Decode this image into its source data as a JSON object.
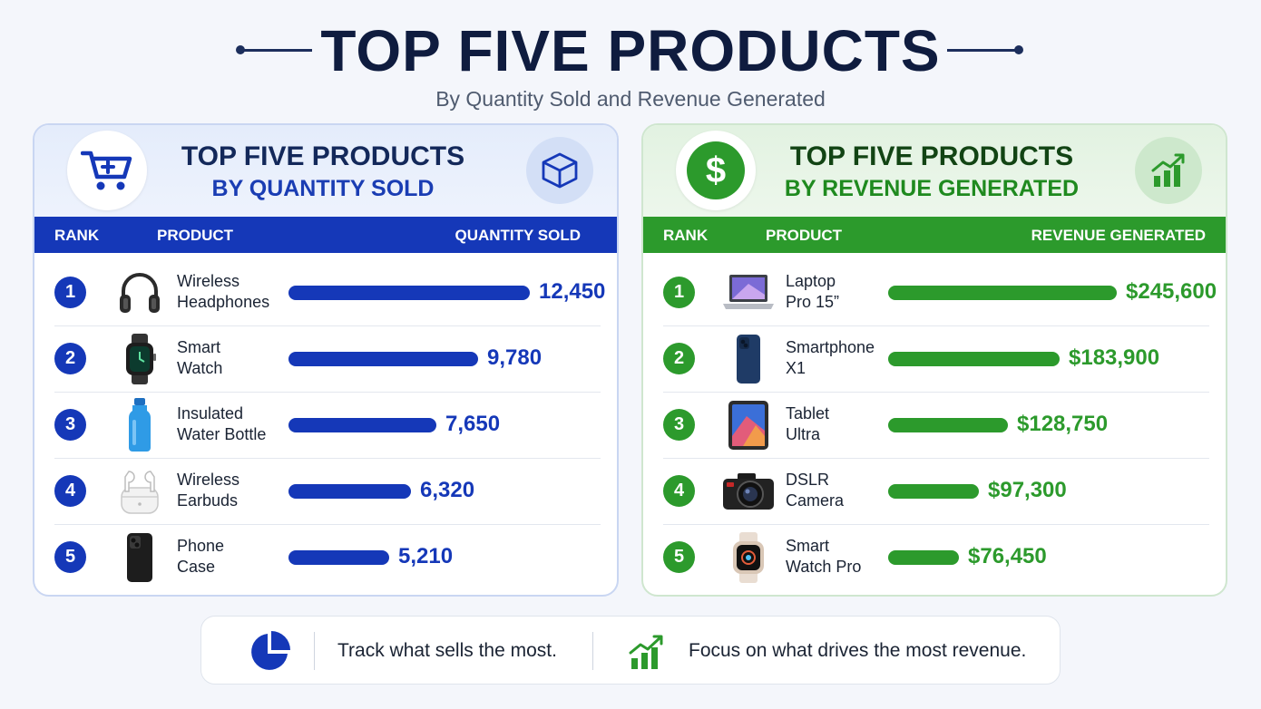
{
  "header": {
    "title": "TOP FIVE PRODUCTS",
    "subtitle": "By Quantity Sold and Revenue Generated"
  },
  "colors": {
    "blue": "#1538b8",
    "green": "#2c9a2c",
    "navy": "#0f1c3f"
  },
  "quantity_panel": {
    "title_line1": "TOP FIVE PRODUCTS",
    "title_line2": "BY QUANTITY SOLD",
    "icon": "shopping-cart-icon",
    "badge_icon": "box-icon",
    "col_rank": "RANK",
    "col_product": "PRODUCT",
    "col_value": "QUANTITY SOLD"
  },
  "revenue_panel": {
    "title_line1": "TOP FIVE PRODUCTS",
    "title_line2": "BY REVENUE GENERATED",
    "icon": "dollar-icon",
    "badge_icon": "growth-chart-icon",
    "col_rank": "RANK",
    "col_product": "PRODUCT",
    "col_value": "REVENUE GENERATED"
  },
  "chart_data": [
    {
      "type": "bar",
      "title": "TOP FIVE PRODUCTS BY QUANTITY SOLD",
      "orientation": "horizontal",
      "ranks": [
        "1",
        "2",
        "3",
        "4",
        "5"
      ],
      "categories": [
        [
          "Wireless",
          "Headphones"
        ],
        [
          "Smart",
          "Watch"
        ],
        [
          "Insulated",
          "Water Bottle"
        ],
        [
          "Wireless",
          "Earbuds"
        ],
        [
          "Phone",
          "Case"
        ]
      ],
      "icons": [
        "headphones-icon",
        "smartwatch-icon",
        "water-bottle-icon",
        "earbuds-icon",
        "phone-case-icon"
      ],
      "values": [
        12450,
        9780,
        7650,
        6320,
        5210
      ],
      "labels": [
        "12,450",
        "9,780",
        "7,650",
        "6,320",
        "5,210"
      ]
    },
    {
      "type": "bar",
      "title": "TOP FIVE PRODUCTS BY REVENUE GENERATED",
      "orientation": "horizontal",
      "ranks": [
        "1",
        "2",
        "3",
        "4",
        "5"
      ],
      "categories": [
        [
          "Laptop",
          "Pro 15”"
        ],
        [
          "Smartphone",
          "X1"
        ],
        [
          "Tablet",
          "Ultra"
        ],
        [
          "DSLR",
          "Camera"
        ],
        [
          "Smart",
          "Watch Pro"
        ]
      ],
      "icons": [
        "laptop-icon",
        "smartphone-icon",
        "tablet-icon",
        "camera-icon",
        "smartwatch-pro-icon"
      ],
      "values": [
        245600,
        183900,
        128750,
        97300,
        76450
      ],
      "labels": [
        "$245,600",
        "$183,900",
        "$128,750",
        "$97,300",
        "$76,450"
      ]
    }
  ],
  "footer": {
    "left_text": "Track what sells the most.",
    "left_icon": "pie-chart-icon",
    "right_text": "Focus on what drives the most revenue.",
    "right_icon": "growth-chart-icon"
  }
}
